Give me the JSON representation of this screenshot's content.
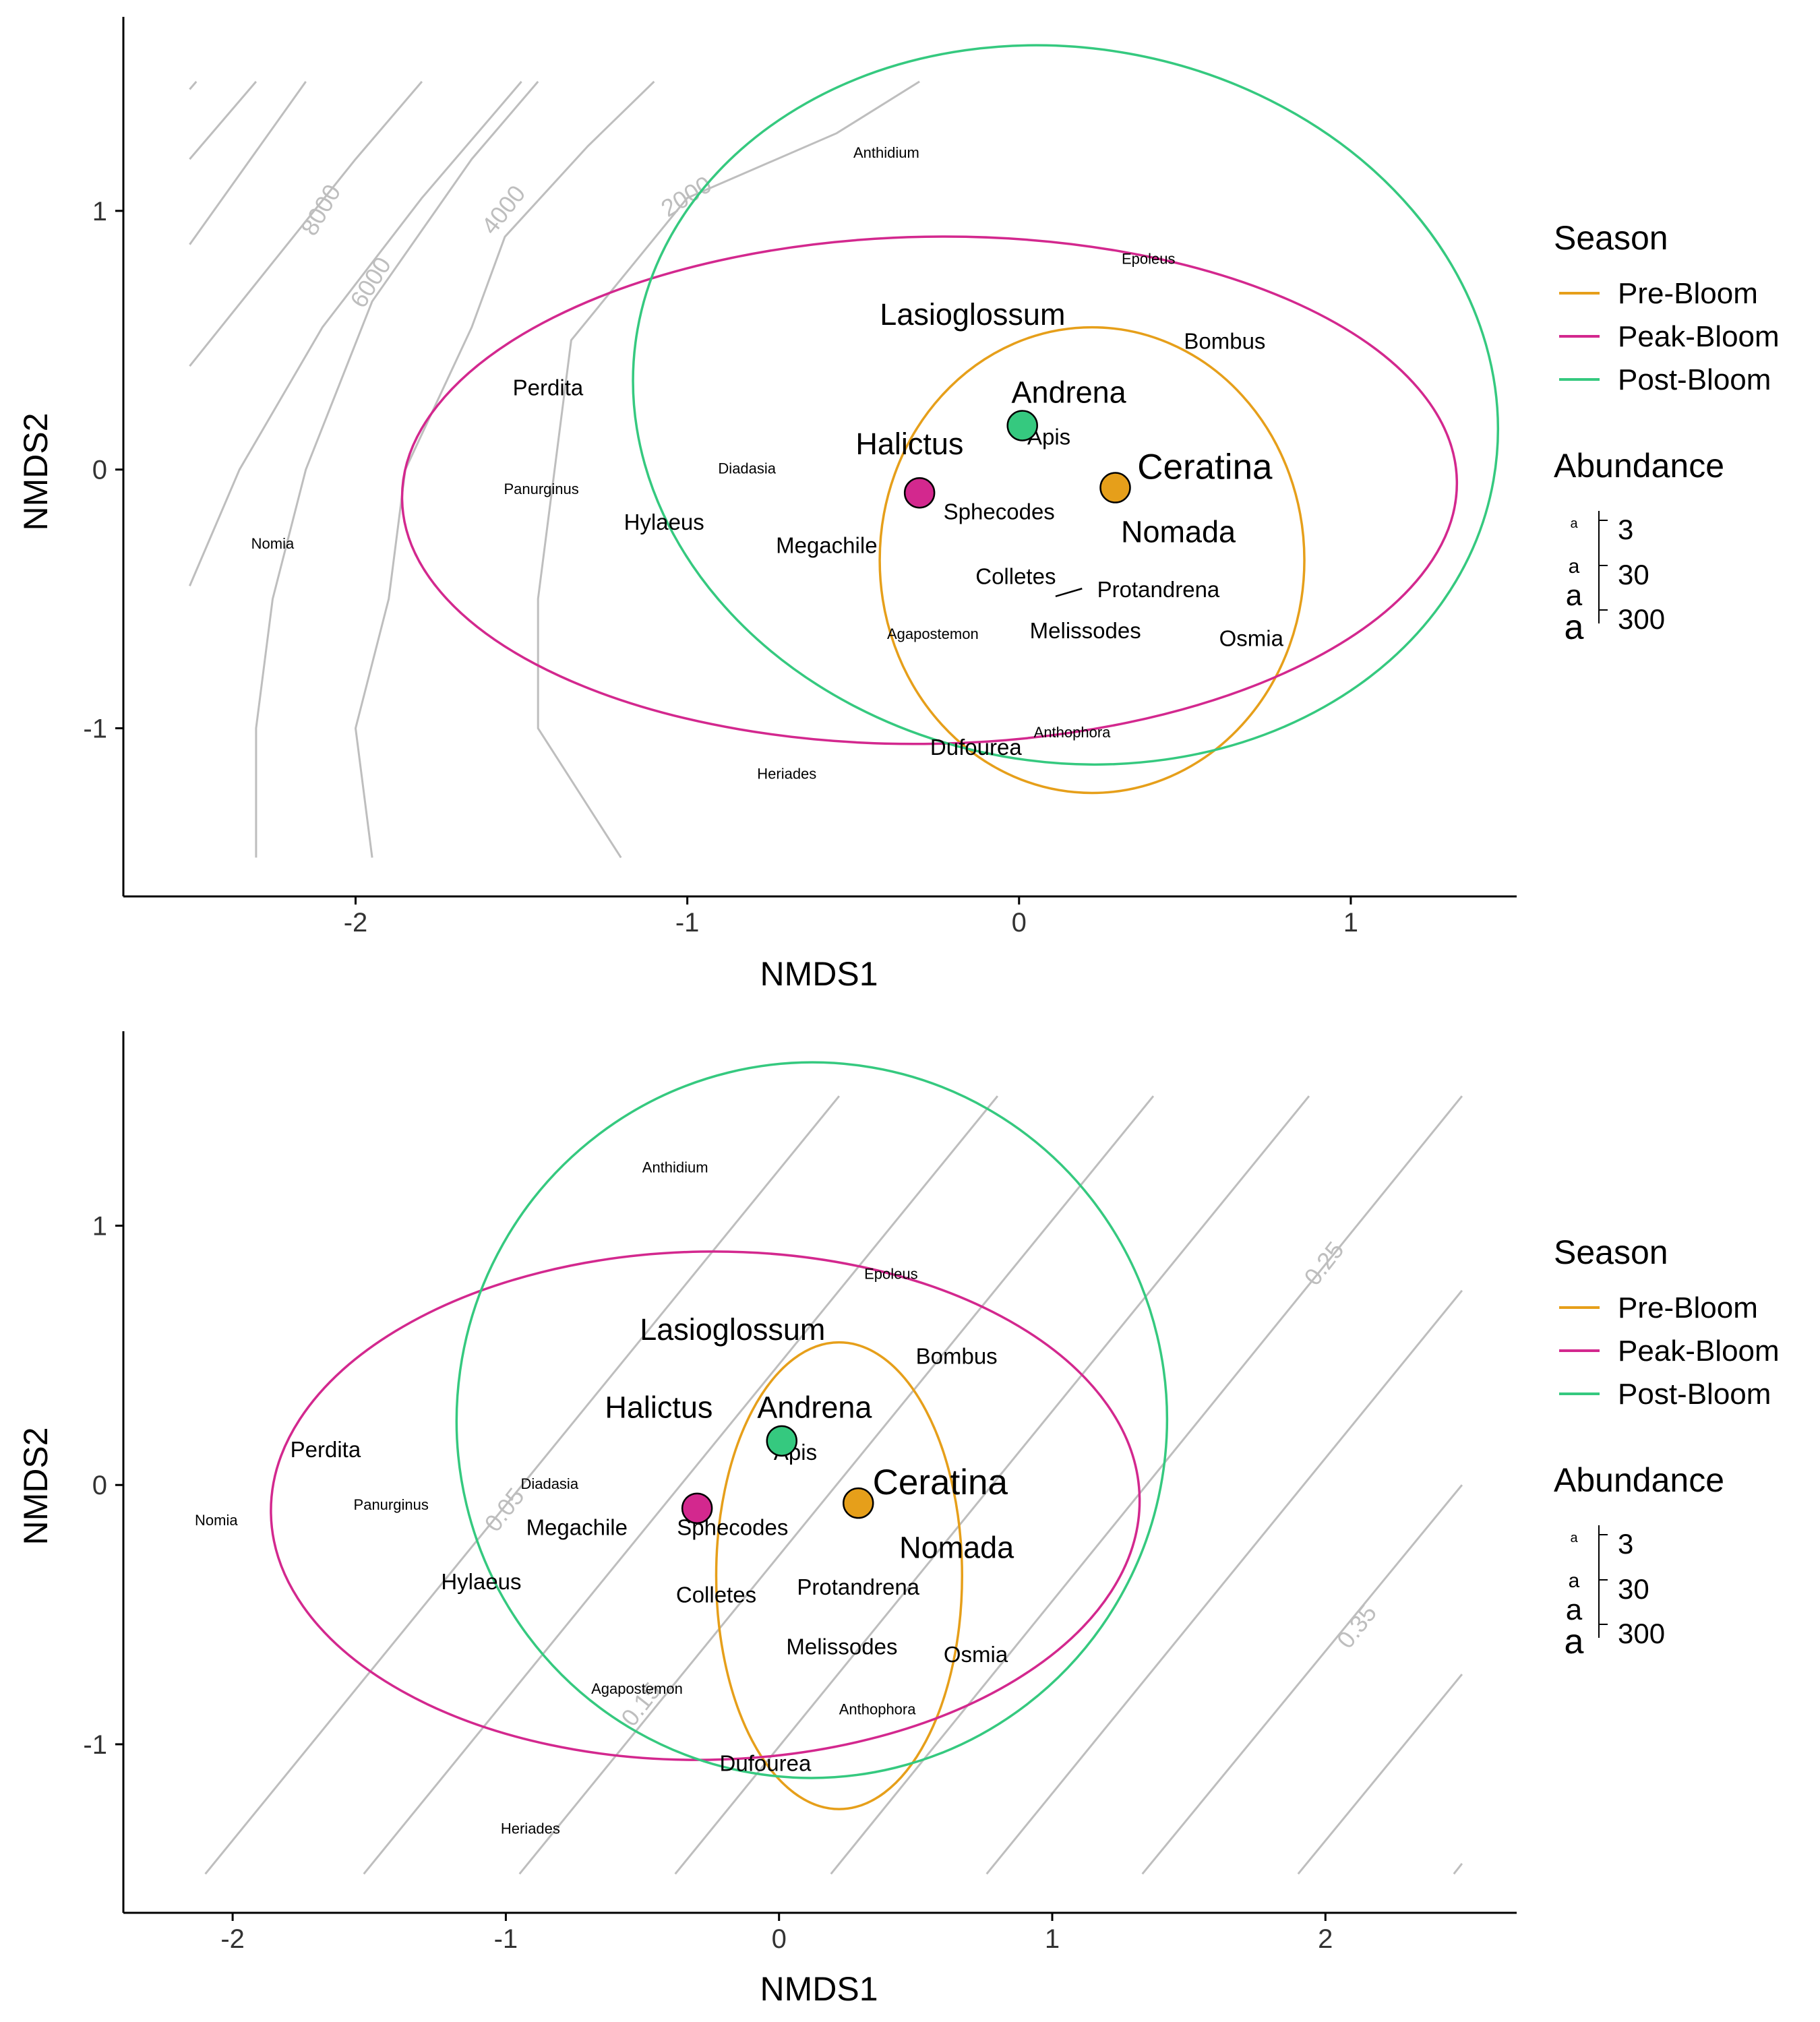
{
  "chart_data": [
    {
      "type": "scatter",
      "xlabel": "NMDS1",
      "ylabel": "NMDS2",
      "xlim": [
        -2.7,
        1.5
      ],
      "ylim": [
        -1.65,
        1.75
      ],
      "xticks": [
        -2,
        -1,
        0,
        1
      ],
      "yticks": [
        -1,
        0,
        1
      ],
      "grid": false,
      "centroids": [
        {
          "season": "Pre-Bloom",
          "x": 0.29,
          "y": -0.07
        },
        {
          "season": "Peak-Bloom",
          "x": -0.3,
          "y": -0.09
        },
        {
          "season": "Post-Bloom",
          "x": 0.01,
          "y": 0.17
        }
      ],
      "ellipses": [
        {
          "season": "Pre-Bloom",
          "cx": 0.22,
          "cy": -0.35,
          "rx": 0.64,
          "ry": 0.9,
          "rotation": 0
        },
        {
          "season": "Peak-Bloom",
          "cx": -0.27,
          "cy": -0.08,
          "rx": 1.59,
          "ry": 0.98,
          "rotation": -1
        },
        {
          "season": "Post-Bloom",
          "cx": 0.14,
          "cy": 0.25,
          "rx": 1.31,
          "ry": 1.38,
          "rotation": 10
        }
      ],
      "contours": [
        {
          "label": "2000",
          "points": [
            [
              -1.2,
              -1.5
            ],
            [
              -1.45,
              -1.0
            ],
            [
              -1.45,
              -0.5
            ],
            [
              -1.35,
              0.5
            ],
            [
              -1.0,
              1.05
            ],
            [
              -0.55,
              1.3
            ],
            [
              -0.3,
              1.5
            ]
          ]
        },
        {
          "label": "4000",
          "points": [
            [
              -1.95,
              -1.5
            ],
            [
              -2.0,
              -1.0
            ],
            [
              -1.9,
              -0.5
            ],
            [
              -1.85,
              0.0
            ],
            [
              -1.65,
              0.55
            ],
            [
              -1.55,
              0.9
            ],
            [
              -1.3,
              1.25
            ],
            [
              -1.1,
              1.5
            ]
          ]
        },
        {
          "label": "6000",
          "points": [
            [
              -2.3,
              -1.5
            ],
            [
              -2.3,
              -1.0
            ],
            [
              -2.25,
              -0.5
            ],
            [
              -2.15,
              0.0
            ],
            [
              -1.95,
              0.65
            ],
            [
              -1.65,
              1.2
            ],
            [
              -1.45,
              1.5
            ]
          ]
        },
        {
          "label": "8000",
          "points": [
            [
              -2.5,
              -0.45
            ],
            [
              -2.35,
              0.0
            ],
            [
              -2.1,
              0.55
            ],
            [
              -1.8,
              1.05
            ],
            [
              -1.5,
              1.5
            ]
          ]
        },
        {
          "label": "",
          "points": [
            [
              -2.5,
              0.4
            ],
            [
              -2.25,
              0.8
            ],
            [
              -2.0,
              1.2
            ],
            [
              -1.8,
              1.5
            ]
          ]
        },
        {
          "label": "",
          "points": [
            [
              -2.5,
              0.87
            ],
            [
              -2.15,
              1.5
            ]
          ]
        },
        {
          "label": "",
          "points": [
            [
              -2.5,
              1.2
            ],
            [
              -2.3,
              1.5
            ]
          ]
        },
        {
          "label": "",
          "points": [
            [
              -2.5,
              1.47
            ],
            [
              -2.48,
              1.5
            ]
          ]
        }
      ],
      "contour_labels": [
        {
          "text": "2000",
          "x": -1.0,
          "y": 1.05,
          "angle": -32
        },
        {
          "text": "4000",
          "x": -1.55,
          "y": 1.0,
          "angle": -52
        },
        {
          "text": "6000",
          "x": -1.95,
          "y": 0.72,
          "angle": -58
        },
        {
          "text": "8000",
          "x": -2.1,
          "y": 1.0,
          "angle": -60
        }
      ],
      "species": [
        {
          "name": "Lasioglossum",
          "x": -0.14,
          "y": 0.59,
          "size": "large"
        },
        {
          "name": "Andrena",
          "x": 0.15,
          "y": 0.29,
          "size": "large"
        },
        {
          "name": "Halictus",
          "x": -0.33,
          "y": 0.09,
          "size": "large"
        },
        {
          "name": "Ceratina",
          "x": 0.56,
          "y": 0.0,
          "size": "xlarge"
        },
        {
          "name": "Nomada",
          "x": 0.48,
          "y": -0.25,
          "size": "large"
        },
        {
          "name": "Apis",
          "x": 0.09,
          "y": 0.12,
          "size": "medium"
        },
        {
          "name": "Sphecodes",
          "x": -0.06,
          "y": -0.17,
          "size": "medium"
        },
        {
          "name": "Perdita",
          "x": -1.42,
          "y": 0.31,
          "size": "medium"
        },
        {
          "name": "Hylaeus",
          "x": -1.07,
          "y": -0.21,
          "size": "medium"
        },
        {
          "name": "Megachile",
          "x": -0.58,
          "y": -0.3,
          "size": "medium"
        },
        {
          "name": "Bombus",
          "x": 0.62,
          "y": 0.49,
          "size": "medium"
        },
        {
          "name": "Colletes",
          "x": -0.01,
          "y": -0.42,
          "size": "medium"
        },
        {
          "name": "Protandrena",
          "x": 0.42,
          "y": -0.47,
          "size": "medium"
        },
        {
          "name": "Melissodes",
          "x": 0.2,
          "y": -0.63,
          "size": "medium"
        },
        {
          "name": "Osmia",
          "x": 0.7,
          "y": -0.66,
          "size": "medium"
        },
        {
          "name": "Dufourea",
          "x": -0.13,
          "y": -1.08,
          "size": "medium"
        },
        {
          "name": "Anthidium",
          "x": -0.4,
          "y": 1.22,
          "size": "small"
        },
        {
          "name": "Epoleus",
          "x": 0.39,
          "y": 0.81,
          "size": "small"
        },
        {
          "name": "Diadasia",
          "x": -0.82,
          "y": 0.0,
          "size": "small"
        },
        {
          "name": "Panurginus",
          "x": -1.44,
          "y": -0.08,
          "size": "small"
        },
        {
          "name": "Nomia",
          "x": -2.25,
          "y": -0.29,
          "size": "small"
        },
        {
          "name": "Agapostemon",
          "x": -0.26,
          "y": -0.64,
          "size": "small"
        },
        {
          "name": "Anthophora",
          "x": 0.16,
          "y": -1.02,
          "size": "small"
        },
        {
          "name": "Heriades",
          "x": -0.7,
          "y": -1.18,
          "size": "small"
        }
      ],
      "leader_lines": [
        {
          "x1": 0.11,
          "y1": -0.49,
          "x2": 0.19,
          "y2": -0.46
        }
      ]
    },
    {
      "type": "scatter",
      "xlabel": "NMDS1",
      "ylabel": "NMDS2",
      "xlim": [
        -2.4,
        2.7
      ],
      "ylim": [
        -1.65,
        1.75
      ],
      "xticks": [
        -2,
        -1,
        0,
        1,
        2
      ],
      "yticks": [
        -1,
        0,
        1
      ],
      "grid": false,
      "centroids": [
        {
          "season": "Pre-Bloom",
          "x": 0.29,
          "y": -0.07
        },
        {
          "season": "Peak-Bloom",
          "x": -0.3,
          "y": -0.09
        },
        {
          "season": "Post-Bloom",
          "x": 0.01,
          "y": 0.17
        }
      ],
      "ellipses": [
        {
          "season": "Pre-Bloom",
          "cx": 0.22,
          "cy": -0.35,
          "rx": 0.45,
          "ry": 0.9,
          "rotation": 0
        },
        {
          "season": "Peak-Bloom",
          "cx": -0.27,
          "cy": -0.08,
          "rx": 1.59,
          "ry": 0.98,
          "rotation": -1
        },
        {
          "season": "Post-Bloom",
          "cx": 0.12,
          "cy": 0.25,
          "rx": 1.3,
          "ry": 1.38,
          "rotation": 8
        }
      ],
      "contours": [
        {
          "label": "",
          "points": [
            [
              -2.1,
              -1.5
            ],
            [
              0.22,
              1.5
            ]
          ]
        },
        {
          "label": "",
          "points": [
            [
              -1.52,
              -1.5
            ],
            [
              0.8,
              1.5
            ]
          ]
        },
        {
          "label": "",
          "points": [
            [
              -0.95,
              -1.5
            ],
            [
              1.37,
              1.5
            ]
          ]
        },
        {
          "label": "",
          "points": [
            [
              -0.38,
              -1.5
            ],
            [
              1.94,
              1.5
            ]
          ]
        },
        {
          "label": "",
          "points": [
            [
              0.19,
              -1.5
            ],
            [
              2.5,
              1.5
            ]
          ]
        },
        {
          "label": "",
          "points": [
            [
              0.76,
              -1.5
            ],
            [
              2.5,
              0.75
            ]
          ]
        },
        {
          "label": "",
          "points": [
            [
              1.33,
              -1.5
            ],
            [
              2.5,
              0.0
            ]
          ]
        },
        {
          "label": "",
          "points": [
            [
              1.9,
              -1.5
            ],
            [
              2.5,
              -0.73
            ]
          ]
        },
        {
          "label": "",
          "points": [
            [
              2.47,
              -1.5
            ],
            [
              2.5,
              -1.46
            ]
          ]
        }
      ],
      "contour_labels": [
        {
          "text": "0.05",
          "x": -1.0,
          "y": -0.1,
          "angle": -52
        },
        {
          "text": "0.15",
          "x": -0.5,
          "y": -0.85,
          "angle": -52
        },
        {
          "text": "0.25",
          "x": 2.0,
          "y": 0.85,
          "angle": -52
        },
        {
          "text": "0.35",
          "x": 2.12,
          "y": -0.55,
          "angle": -52
        }
      ],
      "species": [
        {
          "name": "Lasioglossum",
          "x": -0.17,
          "y": 0.59,
          "size": "large"
        },
        {
          "name": "Andrena",
          "x": 0.13,
          "y": 0.29,
          "size": "large"
        },
        {
          "name": "Halictus",
          "x": -0.44,
          "y": 0.29,
          "size": "large"
        },
        {
          "name": "Ceratina",
          "x": 0.59,
          "y": 0.0,
          "size": "xlarge"
        },
        {
          "name": "Nomada",
          "x": 0.65,
          "y": -0.25,
          "size": "large"
        },
        {
          "name": "Apis",
          "x": 0.06,
          "y": 0.12,
          "size": "medium"
        },
        {
          "name": "Sphecodes",
          "x": -0.17,
          "y": -0.17,
          "size": "medium"
        },
        {
          "name": "Perdita",
          "x": -1.66,
          "y": 0.13,
          "size": "medium"
        },
        {
          "name": "Hylaeus",
          "x": -1.09,
          "y": -0.38,
          "size": "medium"
        },
        {
          "name": "Megachile",
          "x": -0.74,
          "y": -0.17,
          "size": "medium"
        },
        {
          "name": "Bombus",
          "x": 0.65,
          "y": 0.49,
          "size": "medium"
        },
        {
          "name": "Colletes",
          "x": -0.23,
          "y": -0.43,
          "size": "medium"
        },
        {
          "name": "Protandrena",
          "x": 0.29,
          "y": -0.4,
          "size": "medium"
        },
        {
          "name": "Melissodes",
          "x": 0.23,
          "y": -0.63,
          "size": "medium"
        },
        {
          "name": "Osmia",
          "x": 0.72,
          "y": -0.66,
          "size": "medium"
        },
        {
          "name": "Dufourea",
          "x": -0.05,
          "y": -1.08,
          "size": "medium"
        },
        {
          "name": "Anthidium",
          "x": -0.38,
          "y": 1.22,
          "size": "small"
        },
        {
          "name": "Epoleus",
          "x": 0.41,
          "y": 0.81,
          "size": "small"
        },
        {
          "name": "Diadasia",
          "x": -0.84,
          "y": 0.0,
          "size": "small"
        },
        {
          "name": "Panurginus",
          "x": -1.42,
          "y": -0.08,
          "size": "small"
        },
        {
          "name": "Nomia",
          "x": -2.06,
          "y": -0.14,
          "size": "small"
        },
        {
          "name": "Agapostemon",
          "x": -0.52,
          "y": -0.79,
          "size": "small"
        },
        {
          "name": "Anthophora",
          "x": 0.36,
          "y": -0.87,
          "size": "small"
        },
        {
          "name": "Heriades",
          "x": -0.91,
          "y": -1.33,
          "size": "small"
        }
      ],
      "leader_lines": []
    }
  ],
  "legend": {
    "season_title": "Season",
    "seasons": [
      {
        "label": "Pre-Bloom",
        "color": "#E69F1A"
      },
      {
        "label": "Peak-Bloom",
        "color": "#D3288E"
      },
      {
        "label": "Post-Bloom",
        "color": "#35C97F"
      }
    ],
    "abundance_title": "Abundance",
    "abundance_glyph": "a",
    "abundance_values": [
      "3",
      "30",
      "300"
    ]
  },
  "colors": {
    "contour": "#BEBEBE",
    "axis": "#000000",
    "point_outline": "#000000"
  }
}
